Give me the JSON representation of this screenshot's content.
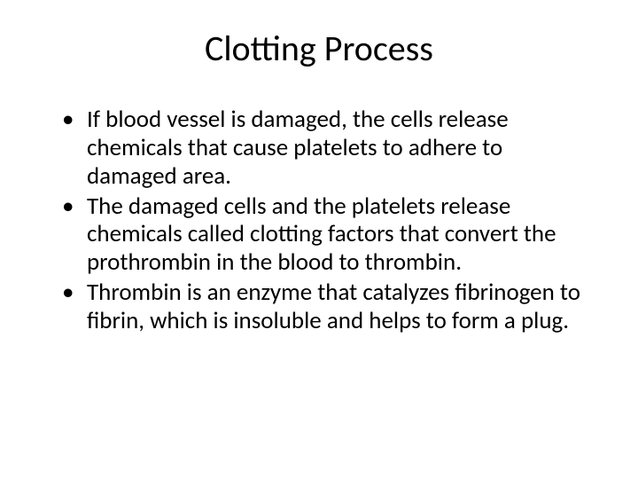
{
  "slide": {
    "title": "Clotting Process",
    "bullets": [
      "If blood vessel is damaged, the cells release chemicals that cause platelets to adhere to damaged area.",
      "The damaged cells and the platelets release chemicals called clotting factors that convert the prothrombin in the blood to thrombin.",
      "Thrombin is an enzyme that catalyzes fibrinogen to fibrin, which is insoluble and helps to form a plug."
    ]
  },
  "colors": {
    "background": "#ffffff",
    "text": "#000000"
  },
  "typography": {
    "title_fontsize": 40,
    "body_fontsize": 27,
    "font_family": "Calibri"
  }
}
